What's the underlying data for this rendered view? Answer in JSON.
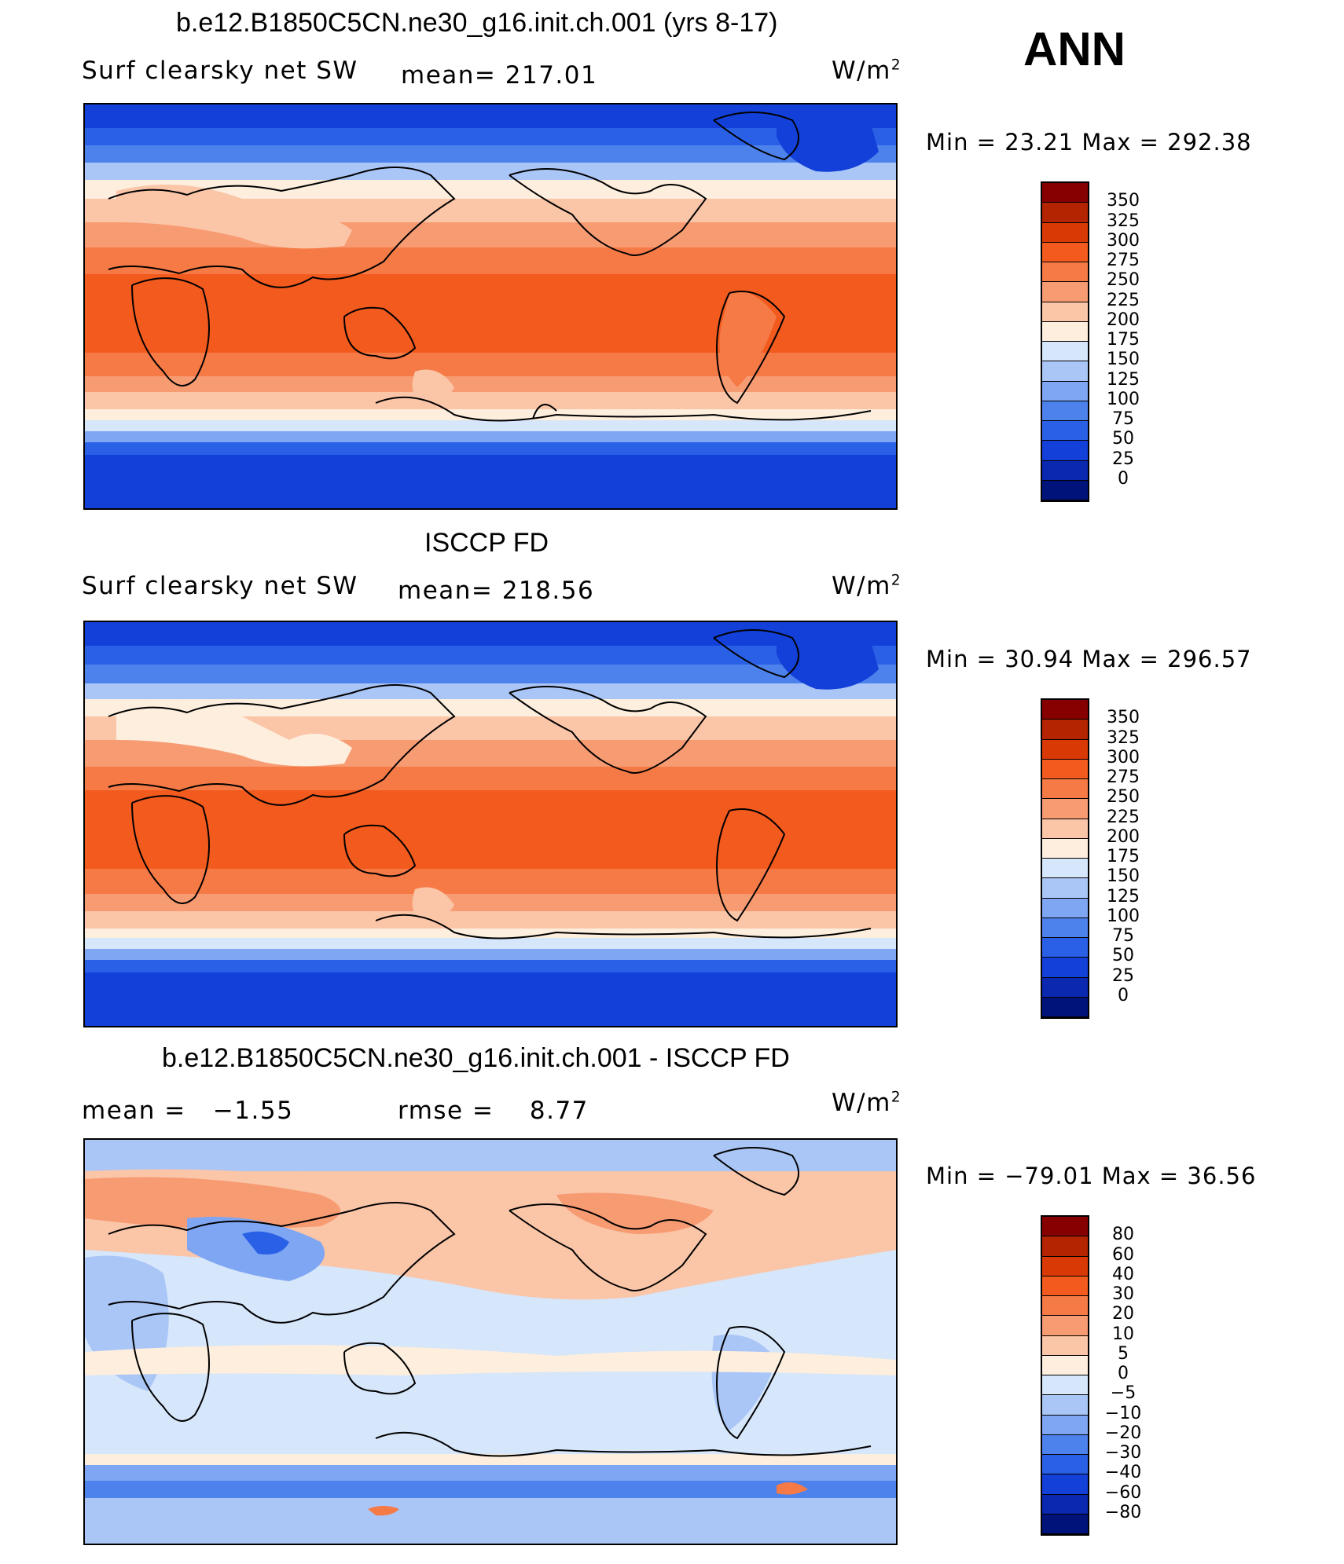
{
  "season": "ANN",
  "units": "W/m",
  "units_sup": "2",
  "panels": [
    {
      "title": "b.e12.B1850C5CN.ne30_g16.init.ch.001 (yrs 8-17)",
      "variable": "Surf clearsky net SW",
      "stat_label": "mean=",
      "stat_value": "217.01",
      "minmax": "Min =   23.21  Max  =  292.38"
    },
    {
      "title": "ISCCP FD",
      "variable": "Surf clearsky net SW",
      "stat_label": "mean=",
      "stat_value": "218.56",
      "minmax": "Min =   30.94  Max  =  296.57"
    },
    {
      "title": "b.e12.B1850C5CN.ne30_g16.init.ch.001 - ISCCP FD",
      "mean_label": "mean =",
      "mean_value": "−1.55",
      "rmse_label": "rmse =",
      "rmse_value": "8.77",
      "minmax": "Min  =  −79.01  Max  =    36.56"
    }
  ],
  "colorbars": [
    {
      "labels": [
        "350",
        "325",
        "300",
        "275",
        "250",
        "225",
        "200",
        "175",
        "150",
        "125",
        "100",
        "75",
        "50",
        "25",
        "0"
      ],
      "colors": [
        "#870000",
        "#b52400",
        "#d93a05",
        "#f25a1e",
        "#f57a46",
        "#f79b72",
        "#fbc5a8",
        "#fdeedd",
        "#d6e6fb",
        "#aac6f6",
        "#7ea6f2",
        "#4d82ed",
        "#2a60e6",
        "#1240d8",
        "#0a28b0",
        "#00137a"
      ]
    },
    {
      "labels": [
        "350",
        "325",
        "300",
        "275",
        "250",
        "225",
        "200",
        "175",
        "150",
        "125",
        "100",
        "75",
        "50",
        "25",
        "0"
      ],
      "colors": [
        "#870000",
        "#b52400",
        "#d93a05",
        "#f25a1e",
        "#f57a46",
        "#f79b72",
        "#fbc5a8",
        "#fdeedd",
        "#d6e6fb",
        "#aac6f6",
        "#7ea6f2",
        "#4d82ed",
        "#2a60e6",
        "#1240d8",
        "#0a28b0",
        "#00137a"
      ]
    },
    {
      "labels": [
        "80",
        "60",
        "40",
        "30",
        "20",
        "10",
        "5",
        "0",
        "−5",
        "−10",
        "−20",
        "−30",
        "−40",
        "−60",
        "−80"
      ],
      "colors": [
        "#870000",
        "#b52400",
        "#d93a05",
        "#f25a1e",
        "#f57a46",
        "#f79b72",
        "#fbc5a8",
        "#fdeedd",
        "#d6e6fb",
        "#aac6f6",
        "#7ea6f2",
        "#4d82ed",
        "#2a60e6",
        "#1240d8",
        "#0a28b0",
        "#00137a"
      ]
    }
  ]
}
